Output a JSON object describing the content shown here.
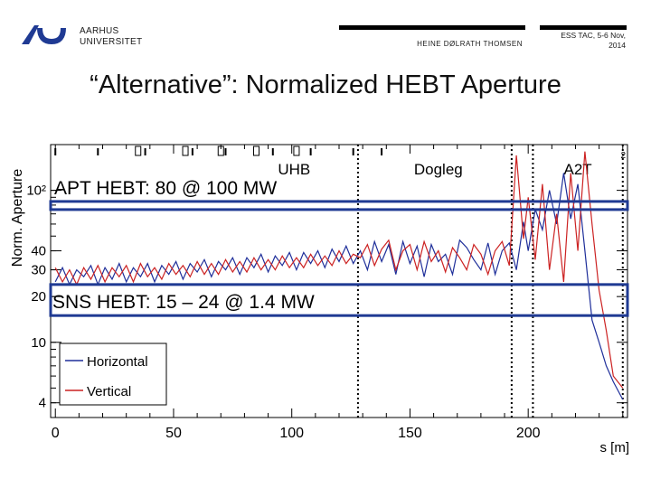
{
  "header": {
    "university_line1": "AARHUS",
    "university_line2": "UNIVERSITET",
    "author": "HEINE DØLRATH THOMSEN",
    "conference_line1": "ESS TAC, 5-6 Nov,",
    "conference_line2": "2014"
  },
  "slide": {
    "title": "“Alternative”: Normalized HEBT Aperture"
  },
  "chart_data": {
    "type": "line",
    "ylabel": "Norm. Aperture",
    "xlabel": "s [m]",
    "y_scale": "log",
    "xlim": [
      -2,
      242
    ],
    "ylim": [
      3.2,
      200
    ],
    "x_ticks": [
      0,
      50,
      100,
      150,
      200
    ],
    "y_ticks": [
      {
        "value": 4,
        "label": "4"
      },
      {
        "value": 10,
        "label": "10"
      },
      {
        "value": 20,
        "label": "20"
      },
      {
        "value": 30,
        "label": "30"
      },
      {
        "value": 40,
        "label": "40"
      },
      {
        "value": 100,
        "label": "10²"
      }
    ],
    "x_top_right_label": "2",
    "section_labels": [
      {
        "text": "UHB",
        "x": 101
      },
      {
        "text": "Dogleg",
        "x": 162
      },
      {
        "text": "A2T",
        "x": 221
      }
    ],
    "section_boundaries": [
      128,
      193,
      202,
      240
    ],
    "legend": [
      "Horizontal",
      "Vertical"
    ],
    "legend_colors": {
      "Horizontal": "#1f2f9a",
      "Vertical": "#cc2222"
    },
    "series": [
      {
        "name": "Horizontal",
        "x": [
          0,
          3,
          6,
          9,
          12,
          15,
          18,
          21,
          24,
          27,
          30,
          33,
          36,
          39,
          42,
          45,
          48,
          51,
          54,
          57,
          60,
          63,
          66,
          69,
          72,
          75,
          78,
          81,
          84,
          87,
          90,
          93,
          96,
          99,
          102,
          105,
          108,
          111,
          114,
          117,
          120,
          123,
          126,
          129,
          132,
          135,
          138,
          141,
          144,
          147,
          150,
          153,
          156,
          159,
          162,
          165,
          168,
          171,
          174,
          177,
          180,
          183,
          186,
          189,
          192,
          195,
          198,
          200,
          203,
          206,
          209,
          212,
          215,
          218,
          221,
          224,
          227,
          230,
          233,
          236,
          240
        ],
        "values": [
          25,
          31,
          24,
          30,
          27,
          32,
          24,
          31,
          26,
          33,
          25,
          31,
          27,
          33,
          25,
          32,
          28,
          34,
          26,
          33,
          29,
          35,
          27,
          34,
          30,
          36,
          28,
          36,
          31,
          38,
          29,
          37,
          32,
          39,
          30,
          39,
          33,
          40,
          31,
          41,
          34,
          43,
          33,
          40,
          30,
          46,
          34,
          44,
          28,
          46,
          33,
          43,
          27,
          44,
          34,
          38,
          28,
          47,
          42,
          35,
          30,
          45,
          28,
          40,
          45,
          30,
          62,
          40,
          75,
          55,
          100,
          60,
          130,
          65,
          110,
          40,
          14,
          10,
          7,
          5.5,
          4.2
        ]
      },
      {
        "name": "Vertical",
        "x": [
          0,
          3,
          6,
          9,
          12,
          15,
          18,
          21,
          24,
          27,
          30,
          33,
          36,
          39,
          42,
          45,
          48,
          51,
          54,
          57,
          60,
          63,
          66,
          69,
          72,
          75,
          78,
          81,
          84,
          87,
          90,
          93,
          96,
          99,
          102,
          105,
          108,
          111,
          114,
          117,
          120,
          123,
          126,
          129,
          132,
          135,
          138,
          141,
          144,
          147,
          150,
          153,
          156,
          159,
          162,
          165,
          168,
          171,
          174,
          177,
          180,
          183,
          186,
          189,
          192,
          195,
          198,
          200,
          203,
          206,
          209,
          212,
          215,
          218,
          221,
          224,
          227,
          230,
          233,
          236,
          240
        ],
        "values": [
          31,
          25,
          30,
          24,
          31,
          26,
          32,
          25,
          31,
          27,
          32,
          25,
          33,
          27,
          31,
          26,
          33,
          28,
          32,
          27,
          34,
          28,
          33,
          28,
          35,
          29,
          34,
          29,
          36,
          30,
          35,
          30,
          37,
          31,
          36,
          31,
          38,
          32,
          37,
          32,
          40,
          33,
          38,
          36,
          44,
          32,
          41,
          47,
          30,
          40,
          44,
          30,
          46,
          34,
          40,
          29,
          42,
          36,
          30,
          44,
          38,
          28,
          40,
          46,
          32,
          170,
          48,
          90,
          35,
          110,
          30,
          70,
          25,
          130,
          40,
          180,
          60,
          22,
          12,
          6,
          5
        ]
      }
    ],
    "annotations": [
      {
        "text": "APT HEBT: 80 @ 100 MW",
        "y": 80
      },
      {
        "text": "SNS HEBT: 15 – 24 @ 1.4 MW",
        "y_range": [
          15,
          24
        ]
      }
    ]
  }
}
